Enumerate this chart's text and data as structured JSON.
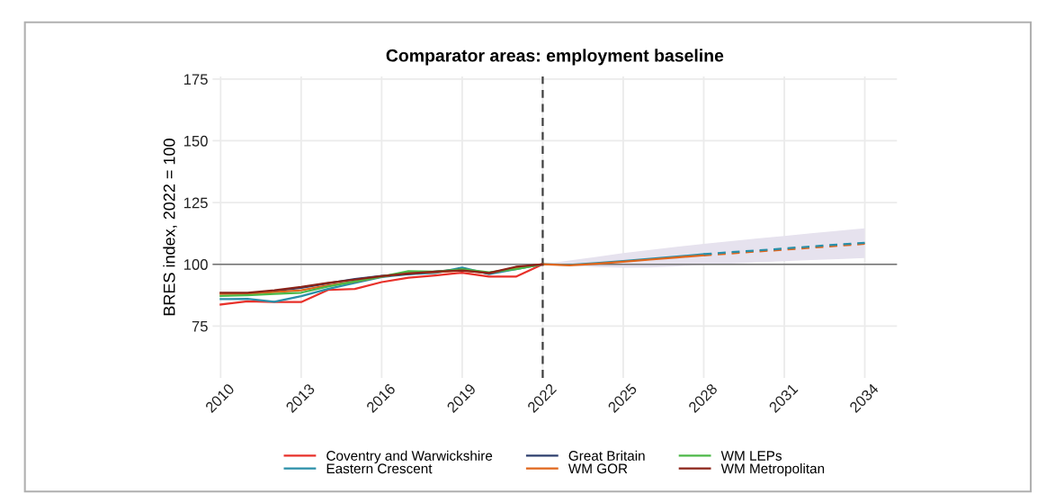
{
  "chart_data": {
    "type": "line",
    "title": "Comparator areas: employment baseline",
    "ylabel": "BRES index, 2022 = 100",
    "xlim": [
      2009.7,
      2035.2
    ],
    "xticks": [
      2010,
      2013,
      2016,
      2019,
      2022,
      2025,
      2028,
      2031,
      2034
    ],
    "ylim": [
      54,
      176
    ],
    "yticks": [
      75,
      100,
      125,
      150,
      175
    ],
    "grid": true,
    "legend": "bottom",
    "line_style": "solid",
    "marker": "none",
    "ref_lines": [
      {
        "axis": "x",
        "value": 2022,
        "color": "#404040",
        "line_style": "dashed"
      },
      {
        "axis": "y",
        "value": 100,
        "color": "#707070",
        "line_style": "solid"
      }
    ],
    "series": [
      {
        "name": "Coventry and Warwickshire",
        "color": "#e8312a",
        "x": [
          2010,
          2011,
          2012,
          2013,
          2014,
          2015,
          2016,
          2017,
          2018,
          2019,
          2020,
          2021,
          2022
        ],
        "values": [
          83.7,
          85,
          84.7,
          84.7,
          89.6,
          90,
          92.8,
          94.6,
          95.5,
          96.6,
          95,
          95,
          100
        ]
      },
      {
        "name": "Eastern Crescent",
        "color": "#2a8fa8",
        "x": [
          2010,
          2011,
          2012,
          2013,
          2014,
          2015,
          2016,
          2017,
          2018,
          2019,
          2020,
          2021,
          2022,
          2023,
          2024,
          2025,
          2026,
          2027,
          2028
        ],
        "values": [
          85.9,
          86,
          84.8,
          87.1,
          90,
          92.5,
          94.8,
          96,
          96.5,
          98.7,
          96,
          98,
          100,
          99.8,
          100.5,
          101.3,
          102.2,
          103.1,
          104.1
        ]
      },
      {
        "name": "Great Britain",
        "color": "#2e3f6e",
        "x": [
          2012,
          2013,
          2014,
          2015,
          2016,
          2017,
          2018,
          2019,
          2020,
          2021,
          2022
        ],
        "values": [
          89.2,
          90.5,
          92.3,
          94,
          95.3,
          96,
          97,
          98,
          96.3,
          98.7,
          100
        ]
      },
      {
        "name": "WM GOR",
        "color": "#e0661c",
        "x": [
          2010,
          2011,
          2012,
          2013,
          2014,
          2015,
          2016,
          2017,
          2018,
          2019,
          2020,
          2021,
          2022,
          2023,
          2024,
          2025,
          2026,
          2027,
          2028
        ],
        "values": [
          88,
          88,
          88.7,
          89.5,
          91.5,
          93,
          95,
          96.5,
          96.8,
          97.5,
          96.5,
          98.5,
          100,
          99.6,
          100.2,
          101,
          101.9,
          102.8,
          103.6
        ]
      },
      {
        "name": "WM LEPs",
        "color": "#4cb848",
        "x": [
          2010,
          2011,
          2012,
          2013,
          2014,
          2015,
          2016,
          2017,
          2018,
          2019,
          2020,
          2021,
          2022
        ],
        "values": [
          87.2,
          87.5,
          88,
          88.5,
          91,
          93,
          95,
          97.2,
          97,
          98,
          96.8,
          98,
          100
        ]
      },
      {
        "name": "WM Metropolitan",
        "color": "#8b2318",
        "x": [
          2010,
          2011,
          2012,
          2013,
          2014,
          2015,
          2016,
          2017,
          2018,
          2019,
          2020,
          2021,
          2022
        ],
        "values": [
          88.5,
          88.5,
          89.5,
          90.8,
          92.5,
          93.8,
          95.2,
          96.3,
          97,
          97.5,
          96.5,
          99,
          100
        ]
      },
      {
        "color": "#e0661c",
        "line_style": "dashed",
        "x": [
          2028,
          2029,
          2030,
          2031,
          2032,
          2033,
          2034
        ],
        "values": [
          103.6,
          104.4,
          105.2,
          105.9,
          106.7,
          107.5,
          108.3
        ]
      },
      {
        "color": "#2a8fa8",
        "line_style": "dashed",
        "x": [
          2022,
          2023,
          2024,
          2025,
          2026,
          2027,
          2028,
          2029,
          2030,
          2031,
          2032,
          2033,
          2034
        ],
        "values": [
          null,
          null,
          null,
          null,
          null,
          null,
          104.1,
          104.9,
          105.6,
          106.4,
          107.2,
          108,
          108.7
        ],
        "lower": [
          100,
          99.4,
          98.9,
          98.6,
          98.7,
          99.2,
          99.8,
          100.3,
          100.8,
          101.3,
          101.7,
          102.1,
          102.5
        ],
        "upper": [
          100,
          101.5,
          103,
          104.5,
          105.8,
          107.1,
          108.3,
          109.4,
          110.5,
          111.5,
          112.6,
          113.6,
          114.6
        ]
      }
    ]
  }
}
